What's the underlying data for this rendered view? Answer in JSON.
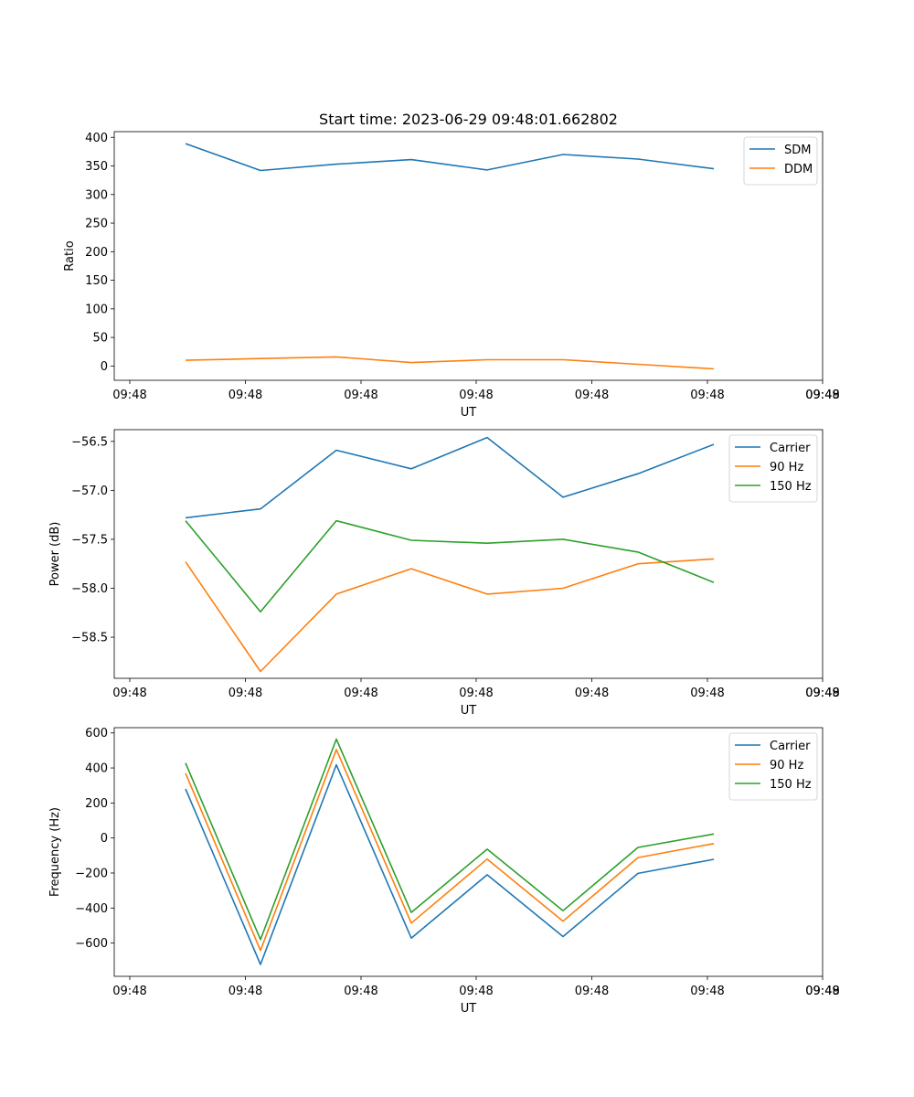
{
  "figure_title": "Start time: 2023-06-29 09:48:01.662802",
  "chart_data": [
    {
      "type": "line",
      "title": "Start time: 2023-06-29 09:48:01.662802",
      "xlabel": "UT",
      "ylabel": "Ratio",
      "x_tick_labels": [
        "09:48",
        "09:48",
        "09:48",
        "09:48",
        "09:48",
        "09:48",
        "09:48"
      ],
      "ylim": [
        -25,
        410
      ],
      "yticks": [
        0,
        50,
        100,
        150,
        200,
        250,
        300,
        350,
        400
      ],
      "y_tick_labels": [
        "0",
        "50",
        "100",
        "150",
        "200",
        "250",
        "300",
        "350",
        "400"
      ],
      "grid": false,
      "legend": "upper right",
      "series": [
        {
          "name": "SDM",
          "color": "#1f77b4",
          "values": [
            389,
            342,
            353,
            361,
            343,
            370,
            362,
            345
          ]
        },
        {
          "name": "DDM",
          "color": "#ff7f0e",
          "values": [
            10,
            13,
            16,
            6,
            11,
            11,
            3,
            -5
          ]
        }
      ]
    },
    {
      "type": "line",
      "xlabel": "UT",
      "ylabel": "Power (dB)",
      "x_tick_labels": [
        "09:48",
        "09:48",
        "09:48",
        "09:48",
        "09:48",
        "09:48",
        "09:48"
      ],
      "ylim": [
        -58.92,
        -56.38
      ],
      "yticks": [
        -56.5,
        -57.0,
        -57.5,
        -58.0,
        -58.5
      ],
      "y_tick_labels": [
        "−56.5",
        "−57.0",
        "−57.5",
        "−58.0",
        "−58.5"
      ],
      "grid": false,
      "legend": "upper right",
      "series": [
        {
          "name": "Carrier",
          "color": "#1f77b4",
          "values": [
            -57.28,
            -57.19,
            -56.59,
            -56.78,
            -56.46,
            -57.07,
            -56.83,
            -56.53
          ]
        },
        {
          "name": "90 Hz",
          "color": "#ff7f0e",
          "values": [
            -57.73,
            -58.85,
            -58.06,
            -57.8,
            -58.06,
            -58.0,
            -57.75,
            -57.7
          ]
        },
        {
          "name": "150 Hz",
          "color": "#2ca02c",
          "values": [
            -57.31,
            -58.24,
            -57.31,
            -57.51,
            -57.54,
            -57.5,
            -57.63,
            -57.94
          ]
        }
      ]
    },
    {
      "type": "line",
      "xlabel": "UT",
      "ylabel": "Frequency (Hz)",
      "x_tick_labels": [
        "09:48",
        "09:48",
        "09:48",
        "09:48",
        "09:48",
        "09:48",
        "09:48"
      ],
      "ylim": [
        -790,
        630
      ],
      "yticks": [
        600,
        400,
        200,
        0,
        -200,
        -400,
        -600
      ],
      "y_tick_labels": [
        "600",
        "400",
        "200",
        "0",
        "−200",
        "−400",
        "−600"
      ],
      "grid": false,
      "legend": "upper right",
      "series": [
        {
          "name": "Carrier",
          "color": "#1f77b4",
          "values": [
            280,
            -722,
            418,
            -572,
            -210,
            -563,
            -202,
            -122
          ]
        },
        {
          "name": "90 Hz",
          "color": "#ff7f0e",
          "values": [
            370,
            -642,
            505,
            -486,
            -120,
            -475,
            -112,
            -32
          ]
        },
        {
          "name": "150 Hz",
          "color": "#2ca02c",
          "values": [
            428,
            -580,
            565,
            -425,
            -64,
            -415,
            -54,
            23
          ]
        }
      ]
    }
  ]
}
